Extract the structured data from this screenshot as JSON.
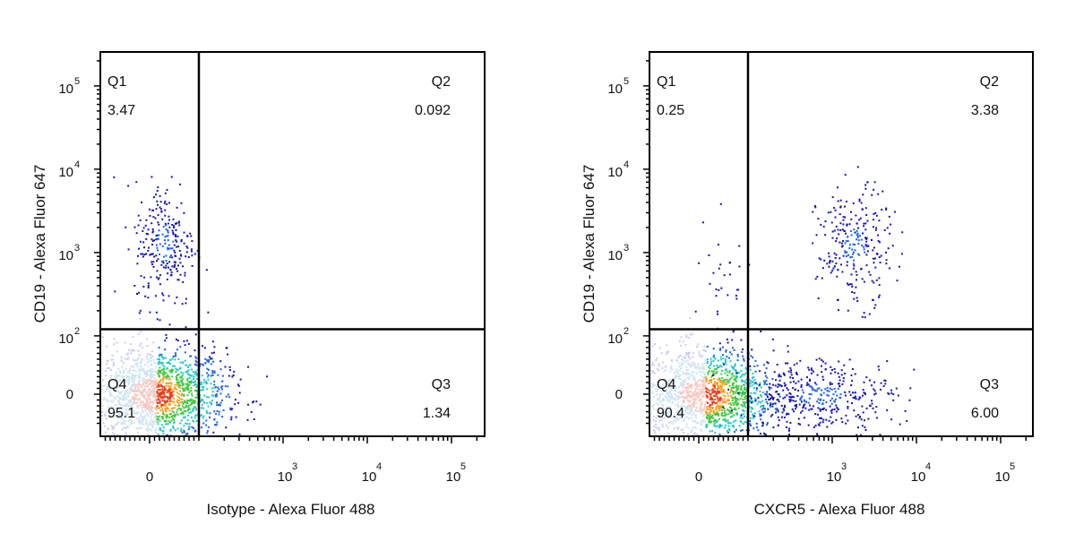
{
  "chart_data": [
    {
      "type": "scatter",
      "subtype": "flow-cytometry-dot-plot",
      "xlabel": "Isotype - Alexa Fluor 488",
      "ylabel": "CD19 - Alexa Fluor 647",
      "x_scale": "biexponential",
      "y_scale": "biexponential",
      "x_ticks": [
        {
          "value": 0,
          "label": "0"
        },
        {
          "value": 1000,
          "base": "10",
          "exp": "3"
        },
        {
          "value": 10000,
          "base": "10",
          "exp": "4"
        },
        {
          "value": 100000,
          "base": "10",
          "exp": "5"
        }
      ],
      "y_ticks": [
        {
          "value": 0,
          "label": "0"
        },
        {
          "value": 100,
          "base": "10",
          "exp": "2"
        },
        {
          "value": 1000,
          "base": "10",
          "exp": "3"
        },
        {
          "value": 10000,
          "base": "10",
          "exp": "4"
        },
        {
          "value": 100000,
          "base": "10",
          "exp": "5"
        }
      ],
      "gate": {
        "x": 100,
        "y": 120
      },
      "quadrants": [
        {
          "name": "Q1",
          "value": "3.47"
        },
        {
          "name": "Q2",
          "value": "0.092"
        },
        {
          "name": "Q3",
          "value": "1.34"
        },
        {
          "name": "Q4",
          "value": "95.1"
        }
      ],
      "populations": [
        {
          "quadrant": "Q4",
          "x_center": 10,
          "y_center": 0,
          "events": 1600
        },
        {
          "quadrant": "Q1",
          "x_center": 30,
          "y_center": 1300,
          "events": 260
        }
      ],
      "color_scale": "density (blue-green-yellow-red)"
    },
    {
      "type": "scatter",
      "subtype": "flow-cytometry-dot-plot",
      "xlabel": "CXCR5 - Alexa Fluor 488",
      "ylabel": "CD19 - Alexa Fluor 647",
      "x_scale": "biexponential",
      "y_scale": "biexponential",
      "x_ticks": [
        {
          "value": 0,
          "label": "0"
        },
        {
          "value": 1000,
          "base": "10",
          "exp": "3"
        },
        {
          "value": 10000,
          "base": "10",
          "exp": "4"
        },
        {
          "value": 100000,
          "base": "10",
          "exp": "5"
        }
      ],
      "y_ticks": [
        {
          "value": 0,
          "label": "0"
        },
        {
          "value": 100,
          "base": "10",
          "exp": "2"
        },
        {
          "value": 1000,
          "base": "10",
          "exp": "3"
        },
        {
          "value": 10000,
          "base": "10",
          "exp": "4"
        },
        {
          "value": 100000,
          "base": "10",
          "exp": "5"
        }
      ],
      "gate": {
        "x": 100,
        "y": 120
      },
      "quadrants": [
        {
          "name": "Q1",
          "value": "0.25"
        },
        {
          "name": "Q2",
          "value": "3.38"
        },
        {
          "name": "Q3",
          "value": "6.00"
        },
        {
          "name": "Q4",
          "value": "90.4"
        }
      ],
      "populations": [
        {
          "quadrant": "Q4",
          "x_center": 10,
          "y_center": 0,
          "events": 1500
        },
        {
          "quadrant": "Q1",
          "x_center": 40,
          "y_center": 400,
          "events": 30
        },
        {
          "quadrant": "Q2",
          "x_center": 1800,
          "y_center": 1200,
          "events": 260
        },
        {
          "quadrant": "Q3",
          "x_center": 700,
          "y_center": 0,
          "events": 380
        }
      ],
      "color_scale": "density (blue-green-yellow-red)"
    }
  ]
}
